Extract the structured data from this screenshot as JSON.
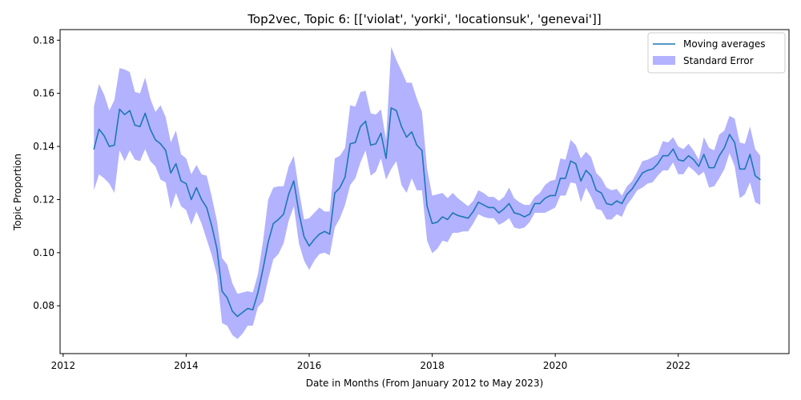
{
  "chart_data": {
    "type": "line",
    "title": "Top2vec, Topic 6: [['violat', 'yorki', 'locationsuk', 'genevai']]",
    "xlabel": "Date in Months (From January 2012 to May 2023)",
    "ylabel": "Topic Proportion",
    "xlim": [
      2011.95,
      2023.8
    ],
    "ylim": [
      0.062,
      0.184
    ],
    "x_ticks": [
      2012,
      2014,
      2016,
      2018,
      2020,
      2022
    ],
    "y_ticks": [
      0.08,
      0.1,
      0.12,
      0.14,
      0.16,
      0.18
    ],
    "y_tick_labels": [
      "0.08",
      "0.10",
      "0.12",
      "0.14",
      "0.16",
      "0.18"
    ],
    "legend": {
      "position": "top-right"
    },
    "colors": {
      "line": "#1f77b4",
      "band": "#b2b2ff"
    },
    "series": [
      {
        "name": "Moving averages",
        "kind": "line",
        "x": [
          "2012-07",
          "2012-08",
          "2012-09",
          "2012-10",
          "2012-11",
          "2012-12",
          "2013-01",
          "2013-02",
          "2013-03",
          "2013-04",
          "2013-05",
          "2013-06",
          "2013-07",
          "2013-08",
          "2013-09",
          "2013-10",
          "2013-11",
          "2013-12",
          "2014-01",
          "2014-02",
          "2014-03",
          "2014-04",
          "2014-05",
          "2014-06",
          "2014-07",
          "2014-08",
          "2014-09",
          "2014-10",
          "2014-11",
          "2014-12",
          "2015-01",
          "2015-02",
          "2015-03",
          "2015-04",
          "2015-05",
          "2015-06",
          "2015-07",
          "2015-08",
          "2015-09",
          "2015-10",
          "2015-11",
          "2015-12",
          "2016-01",
          "2016-02",
          "2016-03",
          "2016-04",
          "2016-05",
          "2016-06",
          "2016-07",
          "2016-08",
          "2016-09",
          "2016-10",
          "2016-11",
          "2016-12",
          "2017-01",
          "2017-02",
          "2017-03",
          "2017-04",
          "2017-05",
          "2017-06",
          "2017-07",
          "2017-08",
          "2017-09",
          "2017-10",
          "2017-11",
          "2017-12",
          "2018-01",
          "2018-02",
          "2018-03",
          "2018-04",
          "2018-05",
          "2018-06",
          "2018-07",
          "2018-08",
          "2018-09",
          "2018-10",
          "2018-11",
          "2018-12",
          "2019-01",
          "2019-02",
          "2019-03",
          "2019-04",
          "2019-05",
          "2019-06",
          "2019-07",
          "2019-08",
          "2019-09",
          "2019-10",
          "2019-11",
          "2019-12",
          "2020-01",
          "2020-02",
          "2020-03",
          "2020-04",
          "2020-05",
          "2020-06",
          "2020-07",
          "2020-08",
          "2020-09",
          "2020-10",
          "2020-11",
          "2020-12",
          "2021-01",
          "2021-02",
          "2021-03",
          "2021-04",
          "2021-05",
          "2021-06",
          "2021-07",
          "2021-08",
          "2021-09",
          "2021-10",
          "2021-11",
          "2021-12",
          "2022-01",
          "2022-02",
          "2022-03",
          "2022-04",
          "2022-05",
          "2022-06",
          "2022-07",
          "2022-08",
          "2022-09",
          "2022-10",
          "2022-11",
          "2022-12",
          "2023-01",
          "2023-02",
          "2023-03",
          "2023-04",
          "2023-05"
        ],
        "values": [
          0.139,
          0.1465,
          0.144,
          0.14,
          0.1405,
          0.154,
          0.152,
          0.1535,
          0.148,
          0.1475,
          0.1525,
          0.1465,
          0.1425,
          0.141,
          0.1385,
          0.13,
          0.1335,
          0.127,
          0.126,
          0.12,
          0.1245,
          0.12,
          0.117,
          0.11,
          0.1015,
          0.0855,
          0.083,
          0.078,
          0.076,
          0.0775,
          0.079,
          0.0785,
          0.085,
          0.094,
          0.104,
          0.111,
          0.1125,
          0.1145,
          0.122,
          0.127,
          0.115,
          0.106,
          0.1025,
          0.105,
          0.107,
          0.108,
          0.107,
          0.1225,
          0.1245,
          0.1285,
          0.141,
          0.1415,
          0.1475,
          0.1495,
          0.1405,
          0.141,
          0.145,
          0.1355,
          0.1545,
          0.1535,
          0.1475,
          0.1435,
          0.1455,
          0.1405,
          0.1385,
          0.1175,
          0.111,
          0.1115,
          0.1135,
          0.1125,
          0.115,
          0.114,
          0.1135,
          0.113,
          0.1155,
          0.119,
          0.118,
          0.117,
          0.117,
          0.115,
          0.1165,
          0.1185,
          0.115,
          0.1145,
          0.1135,
          0.1145,
          0.1185,
          0.1185,
          0.1205,
          0.1215,
          0.1215,
          0.128,
          0.128,
          0.1345,
          0.1335,
          0.127,
          0.131,
          0.129,
          0.1235,
          0.1225,
          0.1185,
          0.118,
          0.1195,
          0.1185,
          0.122,
          0.124,
          0.127,
          0.13,
          0.131,
          0.1315,
          0.1335,
          0.1365,
          0.1365,
          0.139,
          0.135,
          0.1345,
          0.1365,
          0.135,
          0.1325,
          0.137,
          0.132,
          0.132,
          0.1365,
          0.1395,
          0.1445,
          0.1415,
          0.1315,
          0.1315,
          0.137,
          0.129,
          0.1275
        ]
      },
      {
        "name": "Standard Error",
        "kind": "band",
        "upper": [
          0.155,
          0.1635,
          0.1595,
          0.1535,
          0.1575,
          0.1695,
          0.169,
          0.168,
          0.1605,
          0.16,
          0.166,
          0.158,
          0.153,
          0.1555,
          0.151,
          0.1415,
          0.146,
          0.137,
          0.1355,
          0.1295,
          0.133,
          0.1295,
          0.129,
          0.121,
          0.112,
          0.098,
          0.0955,
          0.0885,
          0.0845,
          0.085,
          0.0855,
          0.085,
          0.092,
          0.1045,
          0.12,
          0.1245,
          0.125,
          0.125,
          0.1325,
          0.1365,
          0.1235,
          0.1125,
          0.113,
          0.115,
          0.117,
          0.1155,
          0.1155,
          0.1355,
          0.1365,
          0.1395,
          0.1555,
          0.155,
          0.1605,
          0.161,
          0.1525,
          0.152,
          0.154,
          0.1425,
          0.1775,
          0.1725,
          0.1685,
          0.164,
          0.164,
          0.158,
          0.153,
          0.1315,
          0.1215,
          0.122,
          0.1225,
          0.1205,
          0.1225,
          0.1205,
          0.119,
          0.1175,
          0.1195,
          0.1235,
          0.1225,
          0.121,
          0.121,
          0.1195,
          0.121,
          0.1245,
          0.1205,
          0.119,
          0.118,
          0.118,
          0.121,
          0.1225,
          0.1255,
          0.127,
          0.1275,
          0.1355,
          0.135,
          0.1425,
          0.1405,
          0.1355,
          0.138,
          0.136,
          0.13,
          0.128,
          0.1245,
          0.1235,
          0.124,
          0.1215,
          0.125,
          0.127,
          0.1305,
          0.1345,
          0.135,
          0.136,
          0.137,
          0.142,
          0.1415,
          0.1435,
          0.14,
          0.139,
          0.141,
          0.1385,
          0.135,
          0.1435,
          0.1395,
          0.1385,
          0.1445,
          0.146,
          0.1515,
          0.1505,
          0.1415,
          0.141,
          0.1475,
          0.139,
          0.1365
        ],
        "lower": [
          0.1235,
          0.1295,
          0.128,
          0.126,
          0.1225,
          0.1385,
          0.1345,
          0.1385,
          0.135,
          0.1345,
          0.139,
          0.1345,
          0.1325,
          0.1275,
          0.1265,
          0.1165,
          0.1225,
          0.1175,
          0.116,
          0.1105,
          0.1155,
          0.111,
          0.105,
          0.099,
          0.0915,
          0.0735,
          0.0725,
          0.069,
          0.0675,
          0.0695,
          0.0725,
          0.0725,
          0.0795,
          0.0815,
          0.09,
          0.0975,
          0.0995,
          0.1035,
          0.112,
          0.1175,
          0.1035,
          0.097,
          0.0935,
          0.097,
          0.0995,
          0.1,
          0.099,
          0.1095,
          0.113,
          0.118,
          0.1255,
          0.128,
          0.134,
          0.1385,
          0.129,
          0.1305,
          0.1355,
          0.1275,
          0.1315,
          0.1345,
          0.1255,
          0.1225,
          0.128,
          0.1235,
          0.1235,
          0.1045,
          0.0998,
          0.1015,
          0.1045,
          0.104,
          0.1075,
          0.1075,
          0.108,
          0.108,
          0.111,
          0.1145,
          0.1135,
          0.113,
          0.113,
          0.1105,
          0.1115,
          0.113,
          0.1095,
          0.109,
          0.1095,
          0.1115,
          0.115,
          0.115,
          0.115,
          0.116,
          0.117,
          0.1215,
          0.1215,
          0.1265,
          0.126,
          0.119,
          0.1245,
          0.121,
          0.1165,
          0.116,
          0.1125,
          0.1125,
          0.1145,
          0.1135,
          0.118,
          0.1205,
          0.1235,
          0.1245,
          0.126,
          0.1265,
          0.129,
          0.131,
          0.131,
          0.134,
          0.1295,
          0.1295,
          0.1325,
          0.131,
          0.129,
          0.1305,
          0.1245,
          0.125,
          0.128,
          0.1315,
          0.1375,
          0.1325,
          0.1205,
          0.122,
          0.1265,
          0.119,
          0.118
        ]
      }
    ]
  }
}
